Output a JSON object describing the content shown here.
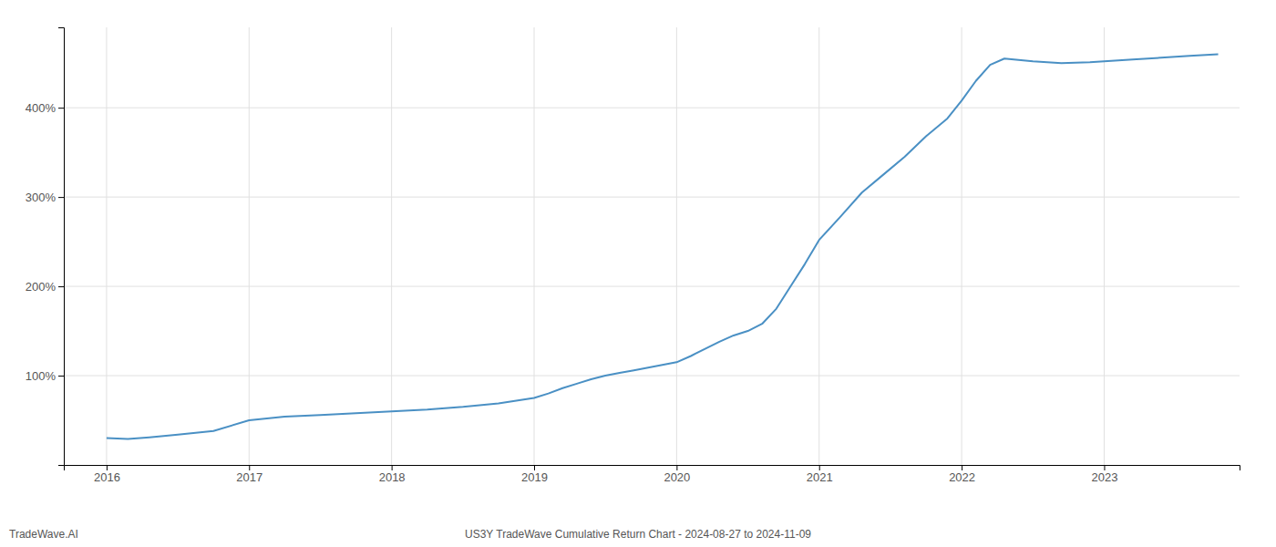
{
  "chart_data": {
    "type": "line",
    "title": "US3Y TradeWave Cumulative Return Chart - 2024-08-27 to 2024-11-09",
    "annotations": [
      "TradeWave.AI"
    ],
    "color": "#4a90c4",
    "x": [
      2016.0,
      2016.15,
      2016.3,
      2016.5,
      2016.75,
      2017.0,
      2017.25,
      2017.5,
      2017.75,
      2018.0,
      2018.25,
      2018.5,
      2018.75,
      2019.0,
      2019.1,
      2019.2,
      2019.3,
      2019.4,
      2019.5,
      2019.6,
      2019.7,
      2019.8,
      2019.9,
      2020.0,
      2020.1,
      2020.2,
      2020.3,
      2020.4,
      2020.5,
      2020.6,
      2020.7,
      2020.8,
      2020.9,
      2021.0,
      2021.15,
      2021.3,
      2021.45,
      2021.6,
      2021.75,
      2021.9,
      2022.0,
      2022.1,
      2022.2,
      2022.3,
      2022.5,
      2022.7,
      2022.9,
      2023.0,
      2023.2,
      2023.4,
      2023.6,
      2023.8
    ],
    "values": [
      30,
      29,
      31,
      34,
      38,
      50,
      54,
      56,
      58,
      60,
      62,
      65,
      69,
      75,
      80,
      86,
      91,
      96,
      100,
      103,
      106,
      109,
      112,
      115,
      122,
      130,
      138,
      145,
      150,
      158,
      175,
      200,
      225,
      252,
      278,
      305,
      325,
      345,
      368,
      388,
      408,
      430,
      448,
      455,
      452,
      450,
      451,
      452,
      454,
      456,
      458,
      460
    ],
    "xlim": [
      2015.7,
      2023.95
    ],
    "xticks": [
      2016,
      2017,
      2018,
      2019,
      2020,
      2021,
      2022,
      2023
    ],
    "ylim": [
      0,
      490
    ],
    "yticks": [
      {
        "value": 100,
        "label": "100%"
      },
      {
        "value": 200,
        "label": "200%"
      },
      {
        "value": 300,
        "label": "300%"
      },
      {
        "value": 400,
        "label": "400%"
      }
    ],
    "grid": true
  }
}
